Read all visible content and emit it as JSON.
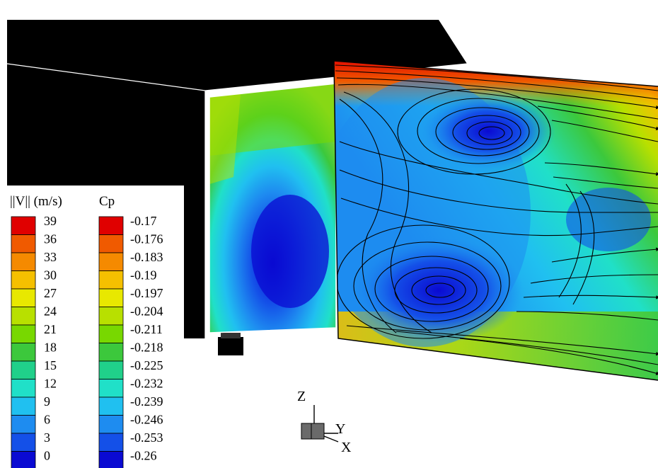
{
  "legend_velocity": {
    "title": "||V|| (m/s)",
    "labels": [
      "39",
      "36",
      "33",
      "30",
      "27",
      "24",
      "21",
      "18",
      "15",
      "12",
      "9",
      "6",
      "3",
      "0"
    ],
    "colors": [
      "#e00000",
      "#f05a00",
      "#f58a00",
      "#f5c000",
      "#e8e800",
      "#b8e000",
      "#78d800",
      "#3cc83c",
      "#20d08a",
      "#20e0c8",
      "#20c0f0",
      "#1e8cf0",
      "#1450e8",
      "#0a0ad2"
    ]
  },
  "legend_cp": {
    "title": "Cp",
    "labels": [
      "-0.17",
      "-0.176",
      "-0.183",
      "-0.19",
      "-0.197",
      "-0.204",
      "-0.211",
      "-0.218",
      "-0.225",
      "-0.232",
      "-0.239",
      "-0.246",
      "-0.253",
      "-0.26"
    ],
    "colors": [
      "#e00000",
      "#f05a00",
      "#f58a00",
      "#f5c000",
      "#e8e800",
      "#b8e000",
      "#78d800",
      "#3cc83c",
      "#20d08a",
      "#20e0c8",
      "#20c0f0",
      "#1e8cf0",
      "#1450e8",
      "#0a0ad2"
    ]
  },
  "axes_triad": {
    "z": "Z",
    "y": "Y",
    "x": "X"
  },
  "colors": {
    "body": "#000000",
    "streamline": "#000000"
  }
}
